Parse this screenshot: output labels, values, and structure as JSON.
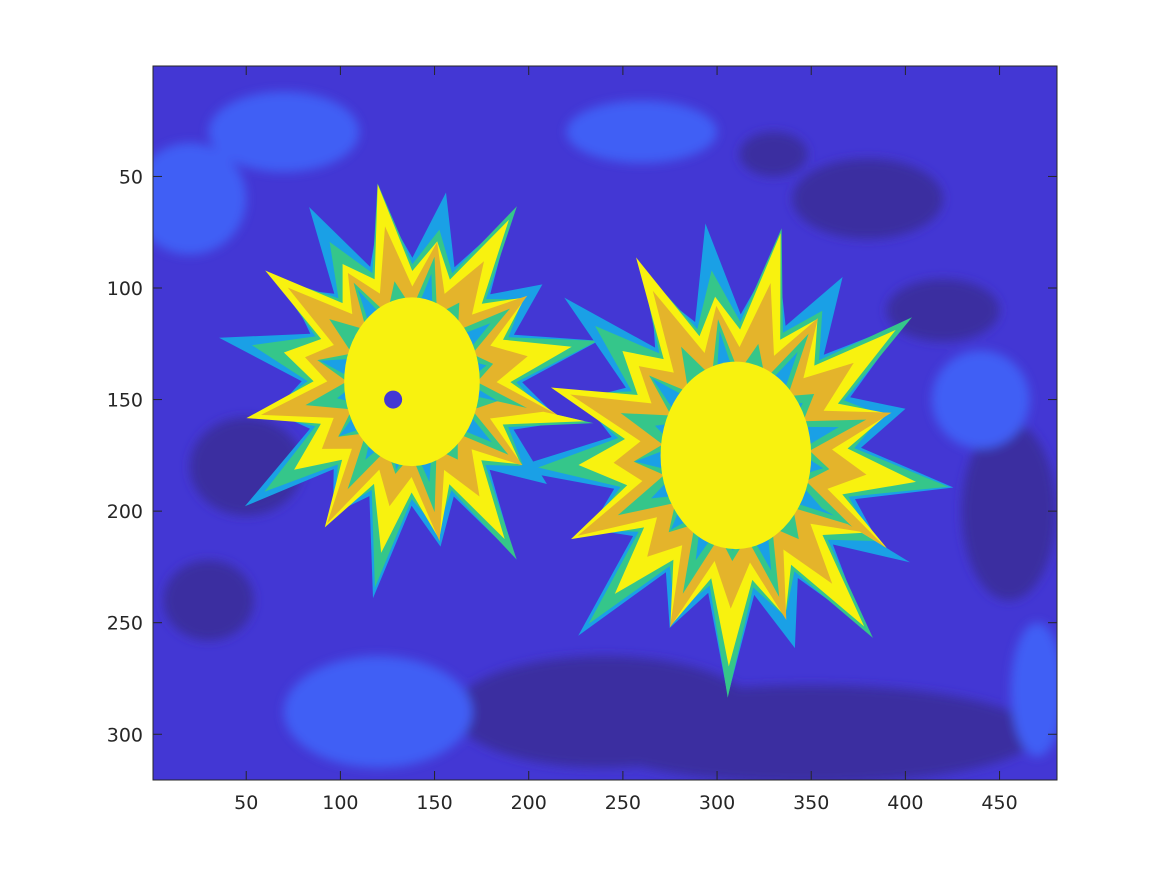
{
  "chart_data": {
    "type": "heatmap",
    "title": "",
    "xlabel": "",
    "ylabel": "",
    "image_size": [
      480,
      320
    ],
    "xlim": [
      0.5,
      480.5
    ],
    "ylim": [
      0.5,
      320.5
    ],
    "y_direction": "reverse",
    "x_ticks": [
      50,
      100,
      150,
      200,
      250,
      300,
      350,
      400,
      450
    ],
    "y_ticks": [
      50,
      100,
      150,
      200,
      250,
      300
    ],
    "x_tick_labels": [
      "50",
      "100",
      "150",
      "200",
      "250",
      "300",
      "350",
      "400",
      "450"
    ],
    "y_tick_labels": [
      "50",
      "100",
      "150",
      "200",
      "250",
      "300"
    ],
    "colormap": "parula",
    "levels": 7,
    "level_colors": [
      "#3a2fa0",
      "#4337d4",
      "#3f5ff5",
      "#1aa0e6",
      "#35c68a",
      "#e4b42b",
      "#f8f20f"
    ],
    "grid": false,
    "colorbar": false,
    "content": "quantized intensity image of two daisy-like flowers"
  }
}
